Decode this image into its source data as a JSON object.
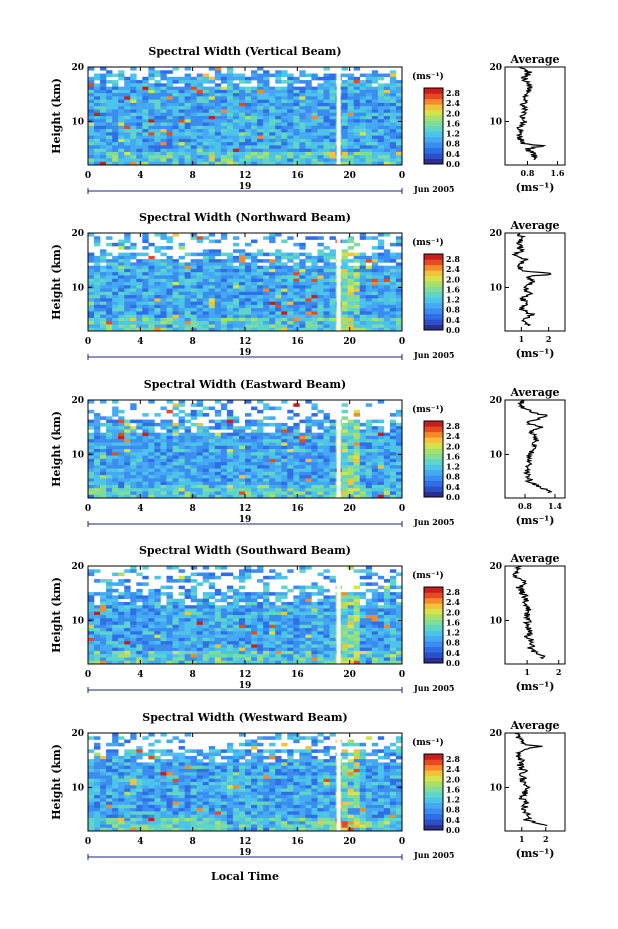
{
  "figure": {
    "xlabel_bottom": "Local Time",
    "colors": {
      "colormap": [
        "#2b2f8f",
        "#2a4fc8",
        "#2f6ee6",
        "#3a8cf0",
        "#45a8f2",
        "#4cc3e8",
        "#5fd4c9",
        "#7fdc9a",
        "#a6e06a",
        "#d6e24b",
        "#f4c23a",
        "#f38a2c",
        "#e64a22",
        "#c81e1e"
      ],
      "average_line": "#000000",
      "date_marker": "#1a237e"
    }
  },
  "chart_data": [
    {
      "type": "heatmap",
      "title": "Spectral Width (Vertical Beam)",
      "ylabel": "Height (km)",
      "xticks": [
        "0",
        "4",
        "8",
        "12",
        "16",
        "20",
        "0"
      ],
      "yticks": [
        "10",
        "20"
      ],
      "xlim": [
        0,
        24
      ],
      "ylim": [
        2,
        20
      ],
      "date_marker": "19",
      "date_label": "Jun 2005",
      "colorbar": {
        "unit": "(ms⁻¹)",
        "ticks": [
          "2.8",
          "2.4",
          "2.0",
          "1.6",
          "1.2",
          "0.8",
          "0.4",
          "0.0"
        ],
        "range": [
          0,
          3
        ]
      },
      "average": {
        "title": "Average",
        "xlabel": "(ms⁻¹)",
        "xticks": [
          "0.8",
          "1.6"
        ],
        "yticks": [
          "10",
          "20"
        ],
        "xlim": [
          0.2,
          1.8
        ],
        "profile": [
          [
            3,
            1.0
          ],
          [
            4,
            0.95
          ],
          [
            5,
            0.8
          ],
          [
            5.5,
            1.2
          ],
          [
            6,
            0.7
          ],
          [
            7,
            0.6
          ],
          [
            8,
            0.65
          ],
          [
            9,
            0.6
          ],
          [
            10,
            0.7
          ],
          [
            11,
            0.65
          ],
          [
            12,
            0.75
          ],
          [
            13,
            0.7
          ],
          [
            14,
            0.8
          ],
          [
            15,
            0.75
          ],
          [
            16,
            0.9
          ],
          [
            17,
            0.8
          ],
          [
            18,
            0.7
          ],
          [
            19,
            0.85
          ],
          [
            20,
            0.6
          ]
        ]
      }
    },
    {
      "type": "heatmap",
      "title": "Spectral Width (Northward Beam)",
      "ylabel": "Height (km)",
      "xticks": [
        "0",
        "4",
        "8",
        "12",
        "16",
        "20",
        "0"
      ],
      "yticks": [
        "10",
        "20"
      ],
      "xlim": [
        0,
        24
      ],
      "ylim": [
        2,
        20
      ],
      "date_marker": "19",
      "date_label": "Jun 2005",
      "colorbar": {
        "unit": "(ms⁻¹)",
        "ticks": [
          "2.8",
          "2.4",
          "2.0",
          "1.6",
          "1.2",
          "0.8",
          "0.4",
          "0.0"
        ],
        "range": [
          0,
          3
        ]
      },
      "average": {
        "title": "Average",
        "xlabel": "(ms⁻¹)",
        "xticks": [
          "1",
          "2"
        ],
        "yticks": [
          "10",
          "20"
        ],
        "xlim": [
          0.4,
          2.6
        ],
        "profile": [
          [
            3,
            1.3
          ],
          [
            4,
            1.1
          ],
          [
            5,
            1.4
          ],
          [
            6,
            1.0
          ],
          [
            7,
            1.2
          ],
          [
            8,
            1.05
          ],
          [
            9,
            1.3
          ],
          [
            10,
            1.1
          ],
          [
            11,
            1.5
          ],
          [
            12,
            1.2
          ],
          [
            12.5,
            2.3
          ],
          [
            13,
            1.1
          ],
          [
            14,
            0.9
          ],
          [
            15,
            1.2
          ],
          [
            16,
            0.8
          ],
          [
            17,
            1.0
          ],
          [
            18,
            0.85
          ],
          [
            19,
            1.1
          ],
          [
            20,
            0.9
          ]
        ]
      }
    },
    {
      "type": "heatmap",
      "title": "Spectral Width (Eastward Beam)",
      "ylabel": "Height (km)",
      "xticks": [
        "0",
        "4",
        "8",
        "12",
        "16",
        "20",
        "0"
      ],
      "yticks": [
        "10",
        "20"
      ],
      "xlim": [
        0,
        24
      ],
      "ylim": [
        2,
        20
      ],
      "date_marker": "19",
      "date_label": "Jun 2005",
      "colorbar": {
        "unit": "(ms⁻¹)",
        "ticks": [
          "2.8",
          "2.4",
          "2.0",
          "1.6",
          "1.2",
          "0.8",
          "0.4",
          "0.0"
        ],
        "range": [
          0,
          3
        ]
      },
      "average": {
        "title": "Average",
        "xlabel": "(ms⁻¹)",
        "xticks": [
          "0.8",
          "1.4"
        ],
        "yticks": [
          "10",
          "20"
        ],
        "xlim": [
          0.4,
          1.6
        ],
        "profile": [
          [
            3,
            1.3
          ],
          [
            4,
            1.1
          ],
          [
            5,
            0.9
          ],
          [
            6,
            0.85
          ],
          [
            7,
            0.8
          ],
          [
            8,
            0.9
          ],
          [
            9,
            0.85
          ],
          [
            10,
            0.9
          ],
          [
            11,
            1.0
          ],
          [
            12,
            0.95
          ],
          [
            13,
            1.05
          ],
          [
            14,
            0.9
          ],
          [
            15,
            1.1
          ],
          [
            16,
            0.8
          ],
          [
            17,
            1.25
          ],
          [
            18,
            0.9
          ],
          [
            19,
            0.7
          ],
          [
            20,
            0.8
          ]
        ]
      }
    },
    {
      "type": "heatmap",
      "title": "Spectral Width (Southward Beam)",
      "ylabel": "Height (km)",
      "xticks": [
        "0",
        "4",
        "8",
        "12",
        "16",
        "20",
        "0"
      ],
      "yticks": [
        "10",
        "20"
      ],
      "xlim": [
        0,
        24
      ],
      "ylim": [
        2,
        20
      ],
      "date_marker": "19",
      "date_label": "Jun 2005",
      "colorbar": {
        "unit": "(ms⁻¹)",
        "ticks": [
          "2.8",
          "2.4",
          "2.0",
          "1.6",
          "1.2",
          "0.8",
          "0.4",
          "0.0"
        ],
        "range": [
          0,
          3
        ]
      },
      "average": {
        "title": "Average",
        "xlabel": "(ms⁻¹)",
        "xticks": [
          "1",
          "2"
        ],
        "yticks": [
          "10",
          "20"
        ],
        "xlim": [
          0.3,
          2.2
        ],
        "profile": [
          [
            3,
            1.6
          ],
          [
            4,
            1.3
          ],
          [
            5,
            1.1
          ],
          [
            6,
            1.2
          ],
          [
            7,
            1.0
          ],
          [
            8,
            1.1
          ],
          [
            9,
            0.95
          ],
          [
            10,
            1.05
          ],
          [
            11,
            1.0
          ],
          [
            12,
            1.1
          ],
          [
            13,
            0.9
          ],
          [
            14,
            1.0
          ],
          [
            15,
            0.85
          ],
          [
            16,
            0.75
          ],
          [
            17,
            0.9
          ],
          [
            18,
            0.7
          ],
          [
            19,
            0.6
          ],
          [
            20,
            0.8
          ]
        ]
      }
    },
    {
      "type": "heatmap",
      "title": "Spectral Width (Westward Beam)",
      "ylabel": "Height (km)",
      "xticks": [
        "0",
        "4",
        "8",
        "12",
        "16",
        "20",
        "0"
      ],
      "yticks": [
        "10",
        "20"
      ],
      "xlim": [
        0,
        24
      ],
      "ylim": [
        2,
        20
      ],
      "date_marker": "19",
      "date_label": "Jun 2005",
      "colorbar": {
        "unit": "(ms⁻¹)",
        "ticks": [
          "2.8",
          "2.4",
          "2.0",
          "1.6",
          "1.2",
          "0.8",
          "0.4",
          "0.0"
        ],
        "range": [
          0,
          3
        ]
      },
      "average": {
        "title": "Average",
        "xlabel": "(ms⁻¹)",
        "xticks": [
          "1",
          "2"
        ],
        "yticks": [
          "10",
          "20"
        ],
        "xlim": [
          0.3,
          2.8
        ],
        "profile": [
          [
            3,
            2.2
          ],
          [
            3.5,
            1.6
          ],
          [
            4,
            1.2
          ],
          [
            5,
            1.3
          ],
          [
            6,
            1.1
          ],
          [
            7,
            1.2
          ],
          [
            8,
            1.0
          ],
          [
            9,
            1.15
          ],
          [
            10,
            1.3
          ],
          [
            11,
            1.1
          ],
          [
            12,
            1.0
          ],
          [
            13,
            1.1
          ],
          [
            14,
            0.9
          ],
          [
            15,
            1.0
          ],
          [
            16,
            0.8
          ],
          [
            17,
            1.0
          ],
          [
            17.5,
            1.9
          ],
          [
            18,
            1.0
          ],
          [
            19,
            0.9
          ],
          [
            20,
            0.8
          ]
        ]
      }
    }
  ]
}
